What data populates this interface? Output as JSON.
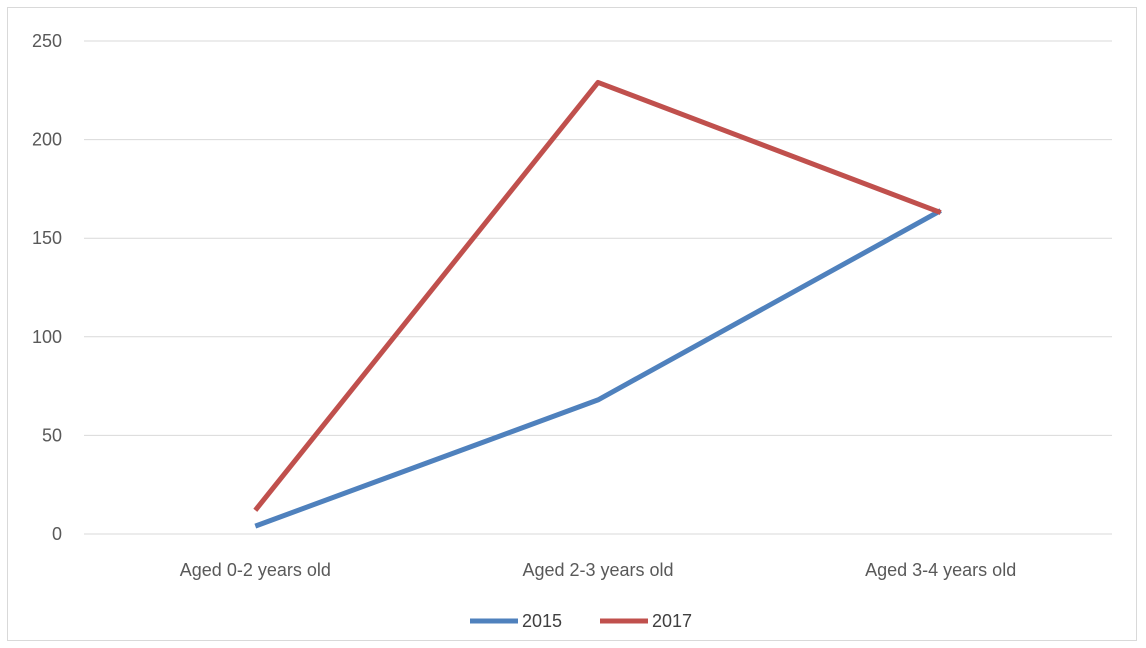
{
  "chart_data": {
    "type": "line",
    "title": "",
    "xlabel": "",
    "ylabel": "",
    "categories": [
      "Aged 0-2 years old",
      "Aged 2-3 years old",
      "Aged 3-4 years old"
    ],
    "series": [
      {
        "name": "2015",
        "values": [
          4,
          68,
          164
        ],
        "color": "#4f81bd"
      },
      {
        "name": "2017",
        "values": [
          12,
          229,
          163
        ],
        "color": "#c0504d"
      }
    ],
    "ylim": [
      0,
      250
    ],
    "yticks": [
      0,
      50,
      100,
      150,
      200,
      250
    ],
    "grid": true,
    "legend_position": "bottom"
  }
}
